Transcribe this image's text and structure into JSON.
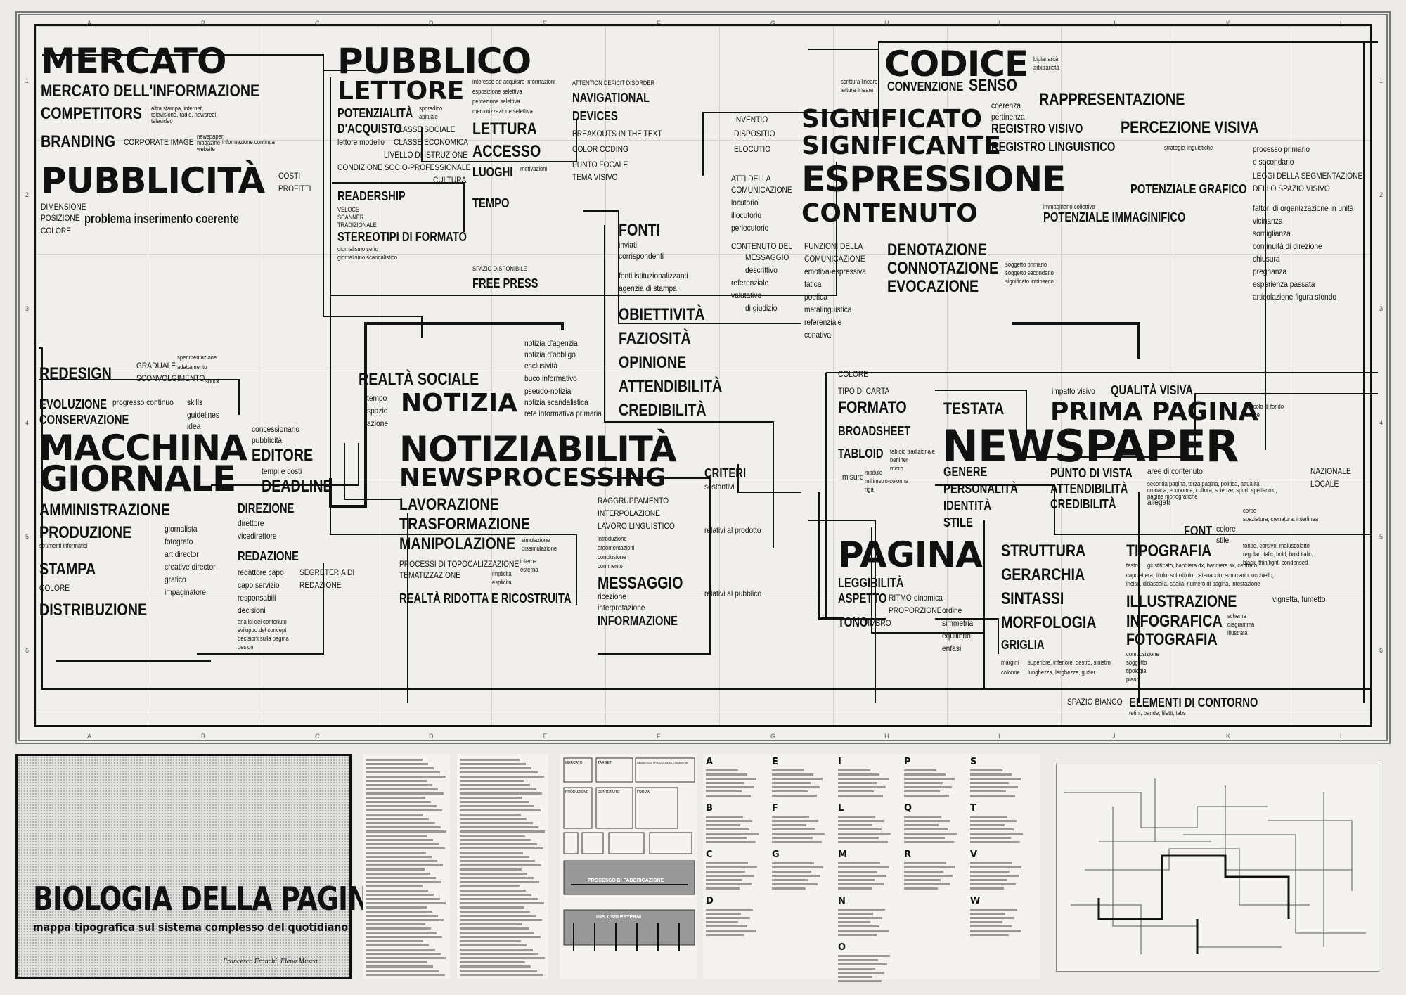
{
  "grid_letters": [
    "A",
    "B",
    "C",
    "D",
    "E",
    "F",
    "G",
    "H",
    "I",
    "J",
    "K",
    "L"
  ],
  "grid_numbers": [
    "1",
    "2",
    "3",
    "4",
    "5",
    "6"
  ],
  "map": {
    "mercato": "MERCATO",
    "mercato_info": "MERCATO DELL'INFORMAZIONE",
    "competitors": "COMPETITORS",
    "competitors_note": "altra stampa, internet, televisione, radio, newsreel, televideo",
    "branding": "BRANDING",
    "corporate_image": "CORPORATE IMAGE",
    "newspaper_magazine_website": "newspaper magazine website",
    "info_continua": "informazione continua",
    "pubblicita": "PUBBLICITÀ",
    "costi": "COSTI",
    "profitti": "PROFITTI",
    "dimensione": "DIMENSIONE",
    "posizione": "POSIZIONE",
    "colore": "COLORE",
    "problema": "problema inserimento coerente",
    "pubblico": "PUBBLICO",
    "lettore": "LETTORE",
    "interesse": "interesse ad acquisire informazioni",
    "esposizione": "esposizione selettiva",
    "percezione_sel": "percezione selettiva",
    "memorizzazione": "memorizzazione selettiva",
    "potenzialita": "POTENZIALITÀ",
    "d_acquisto": "D'ACQUISTO",
    "sporadico": "sporadico",
    "abituale": "abituale",
    "classe_sociale": "CLASSE SOCIALE",
    "classe_economica": "CLASSE ECONOMICA",
    "lettore_modello": "lettore modello",
    "livello_istruzione": "LIVELLO DI ISTRUZIONE",
    "condizione": "CONDIZIONE SOCIO-PROFESSIONALE",
    "cultura": "CULTURA",
    "readership": "READERSHIP",
    "veloce": "VELOCE",
    "scanner": "SCANNER",
    "tradizionale": "TRADIZIONALE",
    "stereotipi": "STEREOTIPI DI FORMATO",
    "giornalismo_serio": "giornalismo serio",
    "giornalismo_scand": "giornalismo scandalistico",
    "lettura": "LETTURA",
    "accesso": "ACCESSO",
    "luoghi": "LUOGHI",
    "tempo": "TEMPO",
    "motivazioni": "motivazioni",
    "spazio_disp": "SPAZIO DISPONIBILE",
    "free_press": "FREE PRESS",
    "attention": "ATTENTION DEFICIT DISORDER",
    "navigational": "NAVIGATIONAL",
    "devices": "DEVICES",
    "breakouts": "BREAKOUTS IN THE TEXT",
    "color_coding": "COLOR CODING",
    "punto_focale": "PUNTO FOCALE",
    "tema_visivo": "TEMA VISIVO",
    "codice": "CODICE",
    "biplanarita": "biplanarità",
    "arbitrarieta": "arbitrarietà",
    "scrittura_lineare": "scrittura lineare",
    "lettura_lineare": "lettura lineare",
    "convenzione": "CONVENZIONE",
    "senso": "SENSO",
    "coerenza": "coerenza",
    "pertinenza": "pertinenza",
    "rappresentazione": "RAPPRESENTAZIONE",
    "registro_visivo": "REGISTRO VISIVO",
    "percezione_visiva": "PERCEZIONE VISIVA",
    "registro_linguistico": "REGISTRO LINGUISTICO",
    "invento": "INVENTIO",
    "dispositio": "DISPOSITIO",
    "elocutio": "ELOCUTIO",
    "significato": "SIGNIFICATO",
    "significante": "SIGNIFICANTE",
    "espressione": "ESPRESSIONE",
    "contenuto": "CONTENUTO",
    "strategie": "strategie linguistiche",
    "processo_primario": "processo primario",
    "e_secondario": "e secondario",
    "leggi": "LEGGI DELLA SEGMENTAZIONE",
    "spazio_visivo": "DELLO SPAZIO VISIVO",
    "potenziale_grafico": "POTENZIALE GRAFICO",
    "potenziale_immaginifico": "POTENZIALE IMMAGINIFICO",
    "immaginario": "immaginario collettivo",
    "fattori": "fattori di organizzazione in unità",
    "vicinanza": "vicinanza",
    "somiglianza": "somiglianza",
    "continuita": "continuità di direzione",
    "chiusura": "chiusura",
    "pregnanza": "pregnanza",
    "esperienza": "esperienza passata",
    "articolazione": "articolazione figura sfondo",
    "atti": "ATTI DELLA",
    "comunicazione": "COMUNICAZIONE",
    "locutorio": "locutorio",
    "illocutorio": "illocutorio",
    "perlocutorio": "perlocutorio",
    "contenuto_messaggio": "CONTENUTO DEL",
    "messaggio_caps": "MESSAGGIO",
    "descrittivo": "descrittivo",
    "referenziale": "referenziale",
    "valutativo": "valutativo",
    "di_giudizio": "di giudizio",
    "funzioni": "FUNZIONI DELLA",
    "comunicazione2": "COMUNICAZIONE",
    "emotiva": "emotiva-espressiva",
    "fatica": "fàtica",
    "poetica": "poetica",
    "metalinguistica": "metalinguistica",
    "referenziale2": "referenziale",
    "conativa": "conativa",
    "denotazione": "DENOTAZIONE",
    "connotazione": "CONNOTAZIONE",
    "evocazione": "EVOCAZIONE",
    "soggetto_primario": "soggetto primario",
    "soggetto_secondario": "soggetto secondario",
    "significato_intrinseco": "significato intrinseco",
    "fonti": "FONTI",
    "inviati": "inviati",
    "corrispondenti": "corrispondenti",
    "fonti_ist": "fonti istituzionalizzanti",
    "agenzia": "agenzia di stampa",
    "obiettivita": "OBIETTIVITÀ",
    "faziosita": "FAZIOSITÀ",
    "opinione": "OPINIONE",
    "attendibilita": "ATTENDIBILITÀ",
    "credibilita": "CREDIBILITÀ",
    "notizia_agenzia": "notizia d'agenzia",
    "notizia_obbligo": "notizia d'obbligo",
    "esclusivita": "esclusività",
    "buco": "buco informativo",
    "pseudo": "pseudo-notizia",
    "notizia_scand": "notizia scandalistica",
    "rete": "rete informativa primaria",
    "realta_sociale": "REALTÀ SOCIALE",
    "tempo2": "tempo",
    "spazio": "spazio",
    "azione": "azione",
    "notizia": "NOTIZIA",
    "redesign": "REDESIGN",
    "graduale": "GRADUALE",
    "sconvolgimento": "SCONVOLGIMENTO",
    "sperimentazione": "sperimentazione",
    "adattamento": "adattamento",
    "shock": "shock",
    "evoluzione": "EVOLUZIONE",
    "conservazione": "CONSERVAZIONE",
    "progresso": "progresso continuo",
    "skills": "skills",
    "guidelines": "guidelines",
    "idea": "idea",
    "macchina": "MACCHINA",
    "giornale": "GIORNALE",
    "concessionario": "concessionario",
    "pubblicita2": "pubblicità",
    "editore": "EDITORE",
    "tempi": "tempi e costi",
    "deadline": "DEADLINE",
    "amministrazione": "AMMINISTRAZIONE",
    "produzione": "PRODUZIONE",
    "strumenti": "strumenti informatici",
    "stampa": "STAMPA",
    "colore2": "COLORE",
    "distribuzione": "DISTRIBUZIONE",
    "direzione": "DIREZIONE",
    "direttore": "direttore",
    "vicedirettore": "vicedirettore",
    "giornalista": "giornalista",
    "fotografo": "fotografo",
    "art_director": "art director",
    "creative_director": "creative director",
    "grafico": "grafico",
    "impaginatore": "impaginatore",
    "redazione": "REDAZIONE",
    "redattore": "redattore capo",
    "capo_servizio": "capo servizio",
    "responsabili": "responsabili",
    "decisioni": "decisioni",
    "analisi": "analisi del contenuto",
    "sviluppo": "sviluppo del concept",
    "decisioni_pagina": "decisioni sulla pagina",
    "design": "design",
    "segreteria": "SEGRETERIA DI",
    "redazione2": "REDAZIONE",
    "notiziabilita": "NOTIZIABILITÀ",
    "newsprocessing": "NEWSPROCESSING",
    "lavorazione": "LAVORAZIONE",
    "trasformazione": "TRASFORMAZIONE",
    "manipolazione": "MANIPOLAZIONE",
    "simulazione": "simulazione",
    "dissimulazione": "dissimulazione",
    "processi": "PROCESSI DI TOPOCALIZZAZIONE",
    "tematizzazione": "TEMATIZZAZIONE",
    "interna": "interna",
    "esterna": "esterna",
    "implicita": "implicita",
    "esplicita": "esplicita",
    "realta_ridotta": "REALTÀ RIDOTTA E RICOSTRUITA",
    "raggruppamento": "RAGGRUPPAMENTO",
    "interpolazione": "INTERPOLAZIONE",
    "lavoro": "LAVORO LINGUISTICO",
    "introduzione": "introduzione",
    "argomentazioni": "argomentazioni",
    "conclusione": "conclusione",
    "commento": "commento",
    "messaggio": "MESSAGGIO",
    "ricezione": "ricezione",
    "interpretazione": "interpretazione",
    "informazione": "INFORMAZIONE",
    "criteri": "CRITERI",
    "sostantivi": "sostantivi",
    "relativi_prodotto": "relativi al prodotto",
    "relativi_pubblico": "relativi al pubblico",
    "colore3": "COLORE",
    "tipo_carta": "TIPO DI CARTA",
    "formato": "FORMATO",
    "broadsheet": "BROADSHEET",
    "tabloid": "TABLOID",
    "misure": "misure",
    "tabloid_note": "tabloid tradizionale",
    "berliner": "berliner",
    "micro": "micro",
    "testata": "TESTATA",
    "prima_pagina": "PRIMA PAGINA",
    "impatto": "impatto visivo",
    "qualita": "QUALITÀ VISIVA",
    "articolo": "articolo di fondo",
    "indice": "indice",
    "newspaper": "NEWSPAPER",
    "genere": "GENERE",
    "personalita": "PERSONALITÀ",
    "identita": "IDENTITÀ",
    "stile": "STILE",
    "punto_vista": "PUNTO DI VISTA",
    "attendibilita2": "ATTENDIBILITÀ",
    "credibilita2": "CREDIBILITÀ",
    "aree": "aree di contenuto",
    "aree_note": "seconda pagina, terza pagina, politica, attualità, cronaca, economia, cultura, scienze, sport, spettacolo, pagine monografiche",
    "nazionale": "NAZIONALE",
    "locale": "LOCALE",
    "allegati": "allegati",
    "font": "FONT",
    "colore4": "colore",
    "stile2": "stile",
    "corpo": "corpo",
    "spaziatura": "spaziatura, crenatura, interlinea",
    "tondo": "tondo, corsivo, maiuscoletto",
    "regular": "regular, italic, bold, bold italic,",
    "black": "black, thin/light, condensed",
    "pagina": "PAGINA",
    "struttura": "STRUTTURA",
    "gerarchia": "GERARCHIA",
    "sintassi": "SINTASSI",
    "morfologia": "MORFOLOGIA",
    "griglia": "GRIGLIA",
    "leggibilita": "LEGGIBILITÀ",
    "aspetto": "ASPETTO",
    "ritmo": "RITMO",
    "dinamica": "dinamica",
    "proporzione": "PROPORZIONE",
    "tono": "TONO",
    "timbro": "TIMBRO",
    "ordine": "ordine",
    "simmetria": "simmetria",
    "equilibrio": "equilibrio",
    "enfasi": "enfasi",
    "tipografia": "TIPOGRAFIA",
    "testo": "testo",
    "testo_note": "giustificato, bandiera dx, bandiera sx, centrato",
    "capolettera": "capolettera, titolo, sottotitolo, catenaccio, sommario, occhiello,",
    "inciso": "inciso, didascalia, spalla, numero di pagina, intestazione",
    "illustrazione": "ILLUSTRAZIONE",
    "vignetta": "vignetta, fumetto",
    "infografica": "INFOGRAFICA",
    "schema": "schema",
    "diagramma": "diagramma",
    "illustrata": "illustrata",
    "fotografia": "FOTOGRAFIA",
    "composizione": "composizione",
    "soggetto": "soggetto",
    "tipologia": "tipologia",
    "piano": "piano",
    "margini": "margini",
    "colonne": "colonne",
    "margini_note": "superiore, inferiore, destro, sinistro",
    "colonne_note": "lunghezza, larghezza, gutter",
    "spazio_bianco": "SPAZIO BIANCO",
    "elementi": "ELEMENTI DI CONTORNO",
    "elementi_note": "retini, bande, filetti, tabs",
    "modulo": "modulo",
    "millimetro": "millimetro-colonna",
    "riga": "riga"
  },
  "title_block": {
    "title": "BIOLOGIA DELLA PAGINA",
    "subtitle": "mappa tipografica sul sistema complesso del quotidiano",
    "authors": "Francesco Franchi, Elena Musca"
  },
  "mini_diagram": {
    "box1": "MERCATO",
    "box2": "TARGET",
    "box3": "SEMIOTICA / PSICOLOGIA COGNITIVA",
    "box4": "PRODUZIONE",
    "box5": "CONTENUTO",
    "box6": "FORMA",
    "processo": "PROCESSO DI FABBRICAZIONE",
    "influssi": "INFLUSSI ESTERNI"
  },
  "index_letters": [
    "A",
    "B",
    "C",
    "D",
    "E",
    "F",
    "G",
    "I",
    "L",
    "M",
    "N",
    "O",
    "P",
    "Q",
    "R",
    "S",
    "T",
    "V",
    "W"
  ]
}
